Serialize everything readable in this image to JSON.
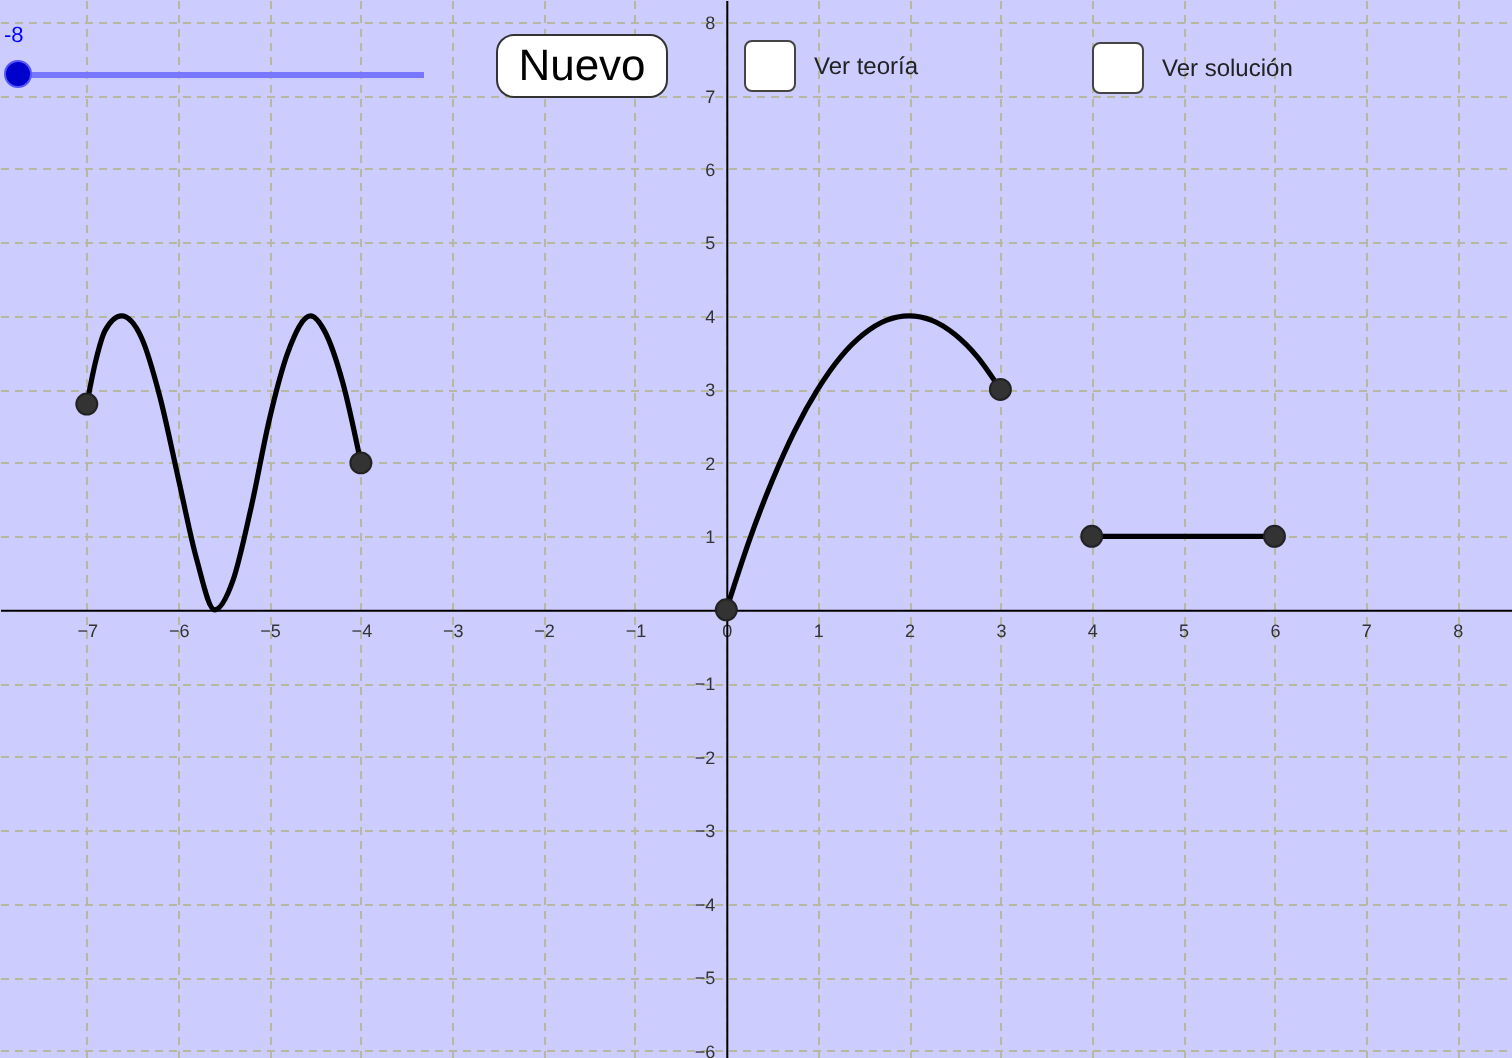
{
  "chart_data": {
    "type": "line",
    "xlim": [
      -7.95,
      8.6
    ],
    "ylim": [
      -6.1,
      8.3
    ],
    "xticks": [
      -7,
      -6,
      -5,
      -4,
      -3,
      -2,
      -1,
      0,
      1,
      2,
      3,
      4,
      5,
      6,
      7,
      8
    ],
    "yticks": [
      -6,
      -5,
      -4,
      -3,
      -2,
      -1,
      1,
      2,
      3,
      4,
      5,
      6,
      7,
      8
    ],
    "grid": true,
    "line_style": "solid",
    "annotations": [
      "-8",
      "Nuevo",
      "Ver teoría",
      "Ver solución"
    ],
    "series": [
      {
        "color": "#000000",
        "x": [
          -7,
          -6.9,
          -6.8,
          -6.62,
          -6.4,
          -6.2,
          -6.0,
          -5.8,
          -5.6,
          -5.4,
          -5.2,
          -5.0,
          -4.8,
          -4.55,
          -4.4,
          -4.2,
          -4.0
        ],
        "values": [
          2.8,
          3.4,
          3.8,
          4,
          3.7,
          2.9,
          1.8,
          0.7,
          0,
          0.4,
          1.4,
          2.6,
          3.5,
          4,
          3.8,
          3.1,
          2.0
        ]
      },
      {
        "color": "#000000",
        "x": [
          0,
          0.25,
          0.5,
          0.75,
          1,
          1.25,
          1.5,
          1.75,
          2,
          2.25,
          2.5,
          2.75,
          3
        ],
        "values": [
          0,
          0.94,
          1.75,
          2.44,
          3,
          3.44,
          3.75,
          3.94,
          4,
          3.94,
          3.75,
          3.44,
          3
        ]
      },
      {
        "color": "#000000",
        "x": [
          4,
          6
        ],
        "values": [
          1,
          1
        ]
      },
      {
        "type": "scatter",
        "color": "#333333",
        "marker": "circle",
        "x": [
          -7,
          -4,
          0,
          3,
          4,
          6
        ],
        "values": [
          2.8,
          2,
          0,
          3,
          1,
          1
        ]
      }
    ]
  }
}
